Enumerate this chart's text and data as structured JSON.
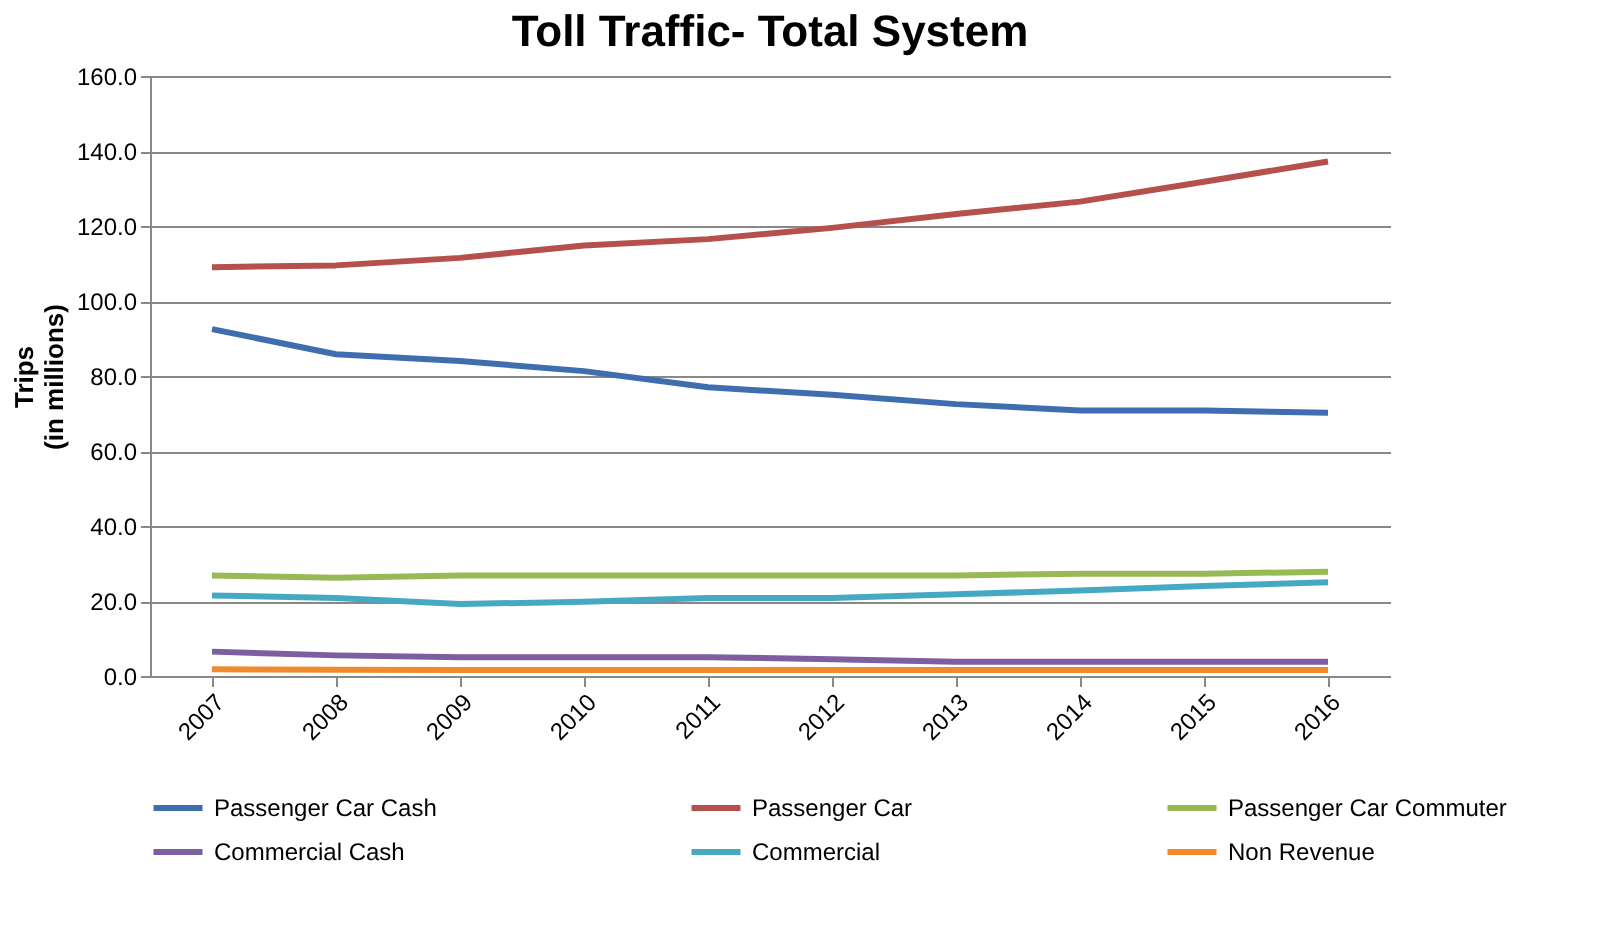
{
  "chart_data": {
    "type": "line",
    "title": "Toll Traffic- Total System",
    "ylabel": "Trips\n(in millions)",
    "categories": [
      "2007",
      "2008",
      "2009",
      "2010",
      "2011",
      "2012",
      "2013",
      "2014",
      "2015",
      "2016"
    ],
    "series": [
      {
        "name": "Passenger Car Cash",
        "color": "#3f6eae",
        "values": [
          92.5,
          85.8,
          84.0,
          81.3,
          77.0,
          75.0,
          72.5,
          70.8,
          70.8,
          70.2
        ]
      },
      {
        "name": "Passenger Car",
        "color": "#b5504c",
        "values": [
          109.0,
          109.5,
          111.5,
          114.8,
          116.5,
          119.5,
          123.2,
          126.5,
          131.8,
          137.2
        ]
      },
      {
        "name": "Passenger Car Commuter",
        "color": "#98b954",
        "values": [
          26.8,
          26.2,
          26.8,
          26.8,
          26.8,
          26.8,
          26.8,
          27.3,
          27.3,
          27.8
        ]
      },
      {
        "name": "Commercial Cash",
        "color": "#7d5fa0",
        "values": [
          6.5,
          5.5,
          5.0,
          5.0,
          5.0,
          4.5,
          3.8,
          3.8,
          3.8,
          3.8
        ]
      },
      {
        "name": "Commercial",
        "color": "#45a9c4",
        "values": [
          21.5,
          20.8,
          19.2,
          19.8,
          20.8,
          20.8,
          21.8,
          22.8,
          24.0,
          25.0
        ]
      },
      {
        "name": "Non Revenue",
        "color": "#f08a2c",
        "values": [
          1.8,
          1.7,
          1.6,
          1.6,
          1.6,
          1.6,
          1.6,
          1.6,
          1.6,
          1.6
        ]
      }
    ],
    "ylim": [
      0,
      160
    ],
    "yticks": [
      {
        "value": 0,
        "label": "0.0"
      },
      {
        "value": 20,
        "label": "20.0"
      },
      {
        "value": 40,
        "label": "40.0"
      },
      {
        "value": 60,
        "label": "60.0"
      },
      {
        "value": 80,
        "label": "80.0"
      },
      {
        "value": 100,
        "label": "100.0"
      },
      {
        "value": 120,
        "label": "120.0"
      },
      {
        "value": 140,
        "label": "140.0"
      },
      {
        "value": 160,
        "label": "160.0"
      }
    ],
    "grid": "y",
    "legend": "bottom",
    "marker": "none",
    "line_style": "solid"
  }
}
